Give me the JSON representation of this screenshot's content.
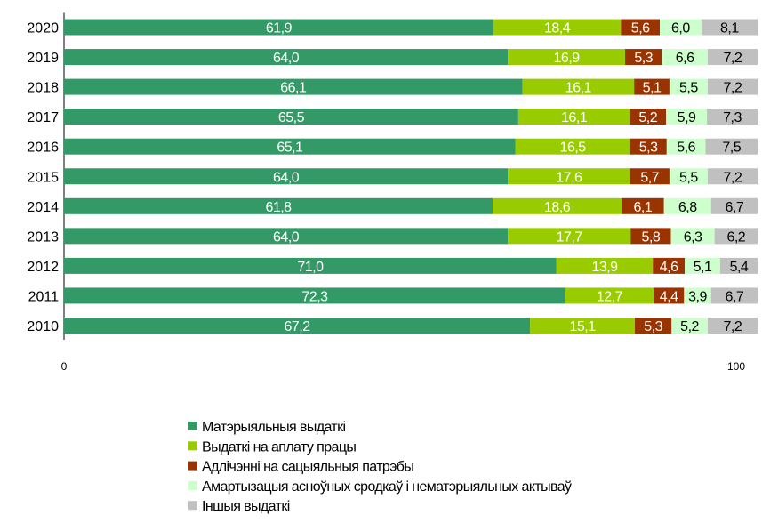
{
  "chart_data": {
    "type": "bar",
    "orientation": "horizontal",
    "stacked": true,
    "categories": [
      "2020",
      "2019",
      "2018",
      "2017",
      "2016",
      "2015",
      "2014",
      "2013",
      "2012",
      "2011",
      "2010"
    ],
    "xlim": [
      0,
      100
    ],
    "x_tick_labels": [
      "0",
      "100"
    ],
    "grid": false,
    "legend_position": "bottom",
    "series": [
      {
        "name": "Матэрыяльныя выдаткі",
        "color": "#339966",
        "values": [
          61.9,
          64.0,
          66.1,
          65.5,
          65.1,
          64.0,
          61.8,
          64.0,
          71.0,
          72.3,
          67.2
        ],
        "labels": [
          "61,9",
          "64,0",
          "66,1",
          "65,5",
          "65,1",
          "64,0",
          "61,8",
          "64,0",
          "71,0",
          "72,3",
          "67,2"
        ],
        "label_color": "#ffffff"
      },
      {
        "name": "Выдаткі на аплату працы",
        "color": "#99CC00",
        "values": [
          18.4,
          16.9,
          16.1,
          16.1,
          16.5,
          17.6,
          18.6,
          17.7,
          13.9,
          12.7,
          15.1
        ],
        "labels": [
          "18,4",
          "16,9",
          "16,1",
          "16,1",
          "16,5",
          "17,6",
          "18,6",
          "17,7",
          "13,9",
          "12,7",
          "15,1"
        ],
        "label_color": "#ffffff"
      },
      {
        "name": "Адлічэнні на сацыяльныя патрэбы",
        "color": "#993300",
        "values": [
          5.6,
          5.3,
          5.1,
          5.2,
          5.3,
          5.7,
          6.1,
          5.8,
          4.6,
          4.4,
          5.3
        ],
        "labels": [
          "5,6",
          "5,3",
          "5,1",
          "5,2",
          "5,3",
          "5,7",
          "6,1",
          "5,8",
          "4,6",
          "4,4",
          "5,3"
        ],
        "label_color": "#ffffff"
      },
      {
        "name": "Амартызацыя асноўных сродкаў і нематэрыяльных актываў",
        "color": "#CCFFCC",
        "values": [
          6.0,
          6.6,
          5.5,
          5.9,
          5.6,
          5.5,
          6.8,
          6.3,
          5.1,
          3.9,
          5.2
        ],
        "labels": [
          "6,0",
          "6,6",
          "5,5",
          "5,9",
          "5,6",
          "5,5",
          "6,8",
          "6,3",
          "5,1",
          "3,9",
          "5,2"
        ],
        "label_color": "#000000"
      },
      {
        "name": "Іншыя выдаткі",
        "color": "#C0C0C0",
        "values": [
          8.1,
          7.2,
          7.2,
          7.3,
          7.5,
          7.2,
          6.7,
          6.2,
          5.4,
          6.7,
          7.2
        ],
        "labels": [
          "8,1",
          "7,2",
          "7,2",
          "7,3",
          "7,5",
          "7,2",
          "6,7",
          "6,2",
          "5,4",
          "6,7",
          "7,2"
        ],
        "label_color": "#000000"
      }
    ]
  }
}
